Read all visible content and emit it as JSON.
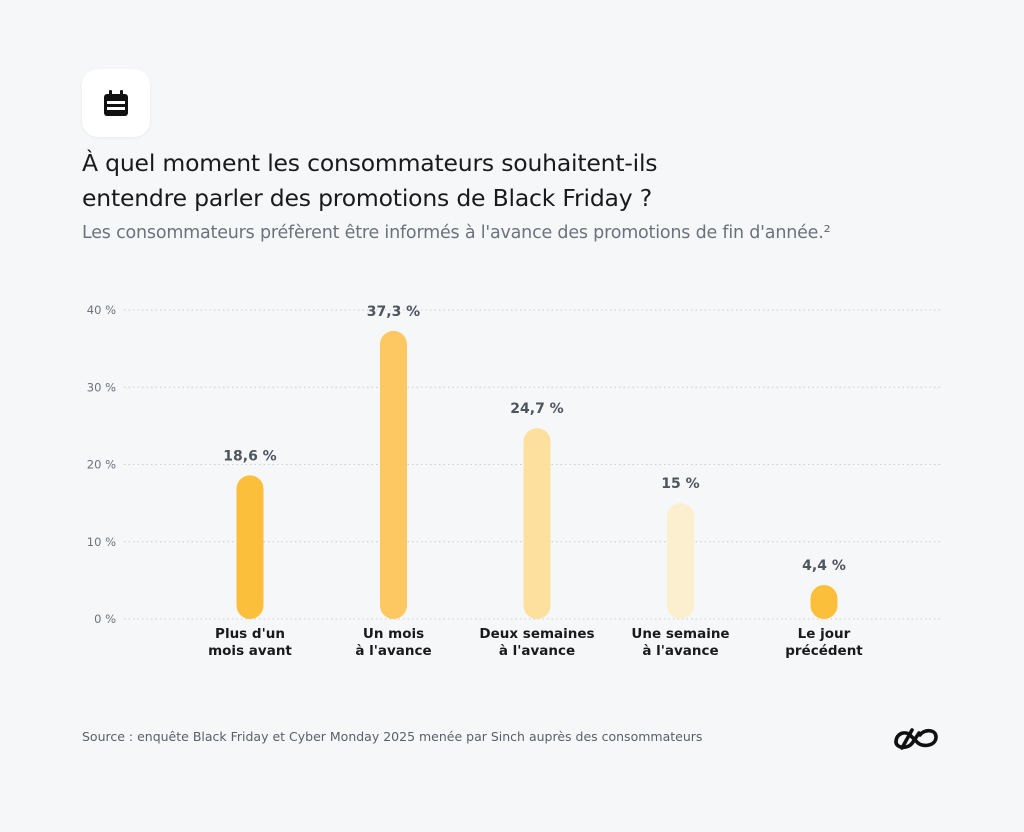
{
  "header": {
    "title_line1": "À quel moment les consommateurs souhaitent-ils",
    "title_line2": "entendre parler des promotions de Black Friday ?",
    "subtitle": "Les consommateurs préfèrent être informés à l'avance des promotions de fin d'année.²",
    "icon": "calendar-icon"
  },
  "chart_data": {
    "type": "bar",
    "title": "À quel moment les consommateurs souhaitent-ils entendre parler des promotions de Black Friday ?",
    "subtitle": "Les consommateurs préfèrent être informés à l'avance des promotions de fin d'année.²",
    "categories": [
      [
        "Plus d'un",
        "mois avant"
      ],
      [
        "Un mois",
        "à l'avance"
      ],
      [
        "Deux semaines",
        "à l'avance"
      ],
      [
        "Une semaine",
        "à l'avance"
      ],
      [
        "Le jour",
        "précédent"
      ]
    ],
    "values": [
      18.6,
      37.3,
      24.7,
      15,
      4.4
    ],
    "value_labels": [
      "18,6 %",
      "37,3 %",
      "24,7 %",
      "15 %",
      "4,4 %"
    ],
    "colors": [
      "#fbbf3b",
      "#fdc861",
      "#fddf9e",
      "#fcefd0",
      "#fbbf3b"
    ],
    "ylim": [
      0,
      40
    ],
    "yticks": [
      0,
      10,
      20,
      30,
      40
    ],
    "ytick_labels": [
      "0 %",
      "10 %",
      "20 %",
      "30 %",
      "40 %"
    ],
    "grid": true,
    "legend": "none"
  },
  "footer": {
    "source": "Source : enquête Black Friday et Cyber Monday 2025 menée par Sinch auprès des consommateurs",
    "logo": "sinch-logo-icon"
  }
}
